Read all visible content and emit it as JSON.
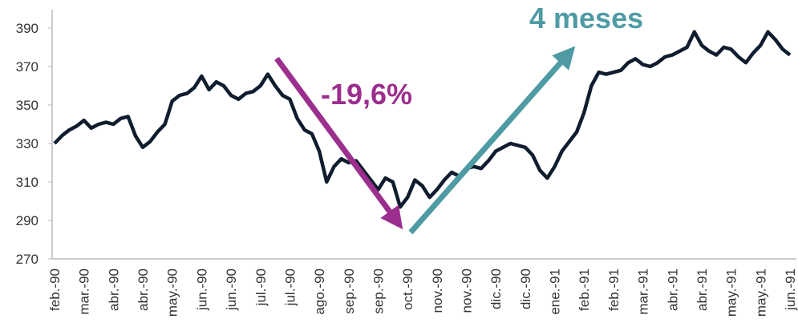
{
  "chart_data": {
    "type": "line",
    "categories": [
      "feb.-90",
      null,
      null,
      null,
      "mar.-90",
      null,
      null,
      null,
      "abr.-90",
      null,
      null,
      null,
      "abr.-90",
      null,
      null,
      null,
      "may.-90",
      null,
      null,
      null,
      "jun.-90",
      null,
      null,
      null,
      "jun.-90",
      null,
      null,
      null,
      "jul.-90",
      null,
      null,
      null,
      "jul.-90",
      null,
      null,
      null,
      "ago.-90",
      null,
      null,
      null,
      "sep.-90",
      null,
      null,
      null,
      "sep.-90",
      null,
      null,
      null,
      "oct.-90",
      null,
      null,
      null,
      "nov.-90",
      null,
      null,
      null,
      "nov.-90",
      null,
      null,
      null,
      "dic.-90",
      null,
      null,
      null,
      "dic.-90",
      null,
      null,
      null,
      "ene.-91",
      null,
      null,
      null,
      "feb.-91",
      null,
      null,
      null,
      "feb.-91",
      null,
      null,
      null,
      "mar.-91",
      null,
      null,
      null,
      "abr.-91",
      null,
      null,
      null,
      "abr.-91",
      null,
      null,
      null,
      "may.-91",
      null,
      null,
      null,
      "may.-91",
      null,
      null,
      null,
      "jun.-91"
    ],
    "series": [
      {
        "color": "#0f1d2e",
        "values": [
          330,
          334,
          337,
          339,
          342,
          338,
          340,
          341,
          340,
          343,
          344,
          334,
          328,
          331,
          336,
          340,
          352,
          355,
          356,
          359,
          365,
          358,
          362,
          360,
          355,
          353,
          356,
          357,
          360,
          366,
          360,
          355,
          353,
          343,
          337,
          335,
          326,
          310,
          318,
          322,
          320,
          321,
          316,
          311,
          306,
          312,
          310,
          297,
          302,
          311,
          308,
          302,
          306,
          311,
          315,
          313,
          317,
          318,
          317,
          321,
          326,
          328,
          330,
          329,
          328,
          324,
          316,
          312,
          318,
          326,
          331,
          336,
          346,
          360,
          367,
          366,
          367,
          368,
          372,
          374,
          371,
          370,
          372,
          375,
          376,
          378,
          380,
          388,
          381,
          378,
          376,
          380,
          379,
          375,
          372,
          377,
          381,
          388,
          384,
          379,
          376
        ]
      }
    ],
    "ylim": [
      270,
      390
    ],
    "yticks": [
      270,
      290,
      310,
      330,
      350,
      370,
      390
    ],
    "annotations": [
      {
        "text": "-19,6%",
        "color": "#9c2f8e"
      },
      {
        "text": "4 meses",
        "color": "#4f9ba4"
      }
    ]
  }
}
